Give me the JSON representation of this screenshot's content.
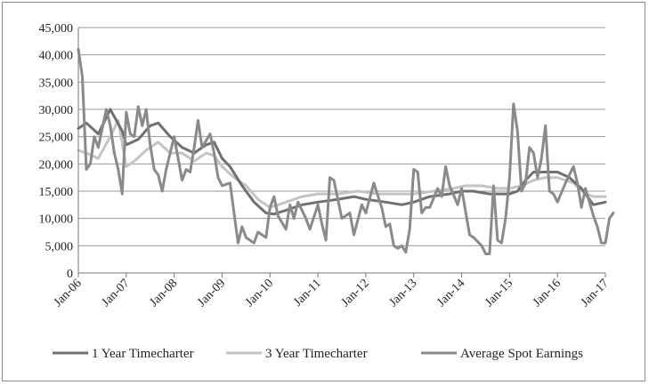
{
  "chart_data": {
    "type": "line",
    "title": "",
    "xlabel": "",
    "ylabel": "",
    "ylim": [
      0,
      45000
    ],
    "y_ticks": [
      0,
      5000,
      10000,
      15000,
      20000,
      25000,
      30000,
      35000,
      40000,
      45000
    ],
    "y_tick_labels": [
      "0",
      "5,000",
      "10,000",
      "15,000",
      "20,000",
      "25,000",
      "30,000",
      "35,000",
      "40,000",
      "45,000"
    ],
    "x_range": [
      "2006-01",
      "2017-01"
    ],
    "x_tick_labels": [
      "Jan-06",
      "Jan-07",
      "Jan-08",
      "Jan-09",
      "Jan-10",
      "Jan-11",
      "Jan-12",
      "Jan-13",
      "Jan-14",
      "Jan-15",
      "Jan-16",
      "Jan-17"
    ],
    "grid": "horizontal",
    "legend_position": "bottom",
    "series": [
      {
        "name": "1 Year Timecharter",
        "color": "#707070",
        "points": [
          [
            "2006-01",
            26500
          ],
          [
            "2006-03",
            27500
          ],
          [
            "2006-06",
            25500
          ],
          [
            "2006-09",
            30000
          ],
          [
            "2006-12",
            26000
          ],
          [
            "2007-01",
            23500
          ],
          [
            "2007-04",
            24500
          ],
          [
            "2007-07",
            27000
          ],
          [
            "2007-09",
            27500
          ],
          [
            "2007-12",
            25000
          ],
          [
            "2008-03",
            23000
          ],
          [
            "2008-06",
            22000
          ],
          [
            "2008-09",
            23500
          ],
          [
            "2008-11",
            24000
          ],
          [
            "2009-01",
            21000
          ],
          [
            "2009-03",
            19500
          ],
          [
            "2009-06",
            16000
          ],
          [
            "2009-09",
            13000
          ],
          [
            "2009-12",
            11000
          ],
          [
            "2010-02",
            10800
          ],
          [
            "2010-05",
            11500
          ],
          [
            "2010-09",
            12500
          ],
          [
            "2011-01",
            13000
          ],
          [
            "2011-06",
            13500
          ],
          [
            "2011-10",
            14000
          ],
          [
            "2012-01",
            13500
          ],
          [
            "2012-06",
            13000
          ],
          [
            "2012-10",
            12500
          ],
          [
            "2013-01",
            13000
          ],
          [
            "2013-05",
            14000
          ],
          [
            "2013-10",
            14500
          ],
          [
            "2014-01",
            15000
          ],
          [
            "2014-04",
            15000
          ],
          [
            "2014-08",
            14500
          ],
          [
            "2015-01",
            14500
          ],
          [
            "2015-03",
            15000
          ],
          [
            "2015-05",
            17000
          ],
          [
            "2015-07",
            18500
          ],
          [
            "2015-10",
            18500
          ],
          [
            "2016-01",
            18500
          ],
          [
            "2016-04",
            17500
          ],
          [
            "2016-07",
            15500
          ],
          [
            "2016-10",
            12500
          ],
          [
            "2017-01",
            13000
          ]
        ]
      },
      {
        "name": "3 Year Timecharter",
        "color": "#c4c4c4",
        "points": [
          [
            "2006-01",
            22500
          ],
          [
            "2006-03",
            22000
          ],
          [
            "2006-06",
            21000
          ],
          [
            "2006-09",
            25000
          ],
          [
            "2006-11",
            28000
          ],
          [
            "2007-01",
            19500
          ],
          [
            "2007-03",
            20500
          ],
          [
            "2007-06",
            22500
          ],
          [
            "2007-09",
            24000
          ],
          [
            "2007-12",
            22000
          ],
          [
            "2008-03",
            22000
          ],
          [
            "2008-06",
            20500
          ],
          [
            "2008-09",
            22000
          ],
          [
            "2008-11",
            21500
          ],
          [
            "2009-01",
            19500
          ],
          [
            "2009-04",
            17500
          ],
          [
            "2009-07",
            16000
          ],
          [
            "2009-10",
            13500
          ],
          [
            "2010-01",
            12000
          ],
          [
            "2010-05",
            13000
          ],
          [
            "2010-09",
            14000
          ],
          [
            "2011-01",
            14500
          ],
          [
            "2011-06",
            14500
          ],
          [
            "2011-11",
            15000
          ],
          [
            "2012-04",
            14500
          ],
          [
            "2012-09",
            14500
          ],
          [
            "2013-01",
            14500
          ],
          [
            "2013-06",
            15000
          ],
          [
            "2013-11",
            15500
          ],
          [
            "2014-02",
            16000
          ],
          [
            "2014-06",
            16000
          ],
          [
            "2014-10",
            15500
          ],
          [
            "2015-01",
            15500
          ],
          [
            "2015-04",
            16000
          ],
          [
            "2015-07",
            17000
          ],
          [
            "2015-10",
            17500
          ],
          [
            "2016-01",
            17500
          ],
          [
            "2016-05",
            16500
          ],
          [
            "2016-08",
            14500
          ],
          [
            "2016-10",
            14000
          ],
          [
            "2017-01",
            14000
          ]
        ]
      },
      {
        "name": "Average Spot Earnings",
        "color": "#8a8a8a",
        "points": [
          [
            "2006-01",
            41000
          ],
          [
            "2006-02",
            36000
          ],
          [
            "2006-03",
            19000
          ],
          [
            "2006-04",
            20000
          ],
          [
            "2006-05",
            25000
          ],
          [
            "2006-06",
            23000
          ],
          [
            "2006-08",
            30000
          ],
          [
            "2006-09",
            27000
          ],
          [
            "2006-10",
            22000
          ],
          [
            "2006-11",
            19000
          ],
          [
            "2006-12",
            14500
          ],
          [
            "2007-01",
            29500
          ],
          [
            "2007-02",
            25500
          ],
          [
            "2007-03",
            25000
          ],
          [
            "2007-04",
            30500
          ],
          [
            "2007-05",
            27000
          ],
          [
            "2007-06",
            30000
          ],
          [
            "2007-07",
            23500
          ],
          [
            "2007-08",
            19000
          ],
          [
            "2007-09",
            18000
          ],
          [
            "2007-10",
            15000
          ],
          [
            "2007-11",
            19000
          ],
          [
            "2008-01",
            25000
          ],
          [
            "2008-02",
            21000
          ],
          [
            "2008-03",
            17000
          ],
          [
            "2008-04",
            19000
          ],
          [
            "2008-05",
            18500
          ],
          [
            "2008-06",
            23000
          ],
          [
            "2008-07",
            28000
          ],
          [
            "2008-08",
            23000
          ],
          [
            "2008-10",
            25500
          ],
          [
            "2008-11",
            22000
          ],
          [
            "2008-12",
            17500
          ],
          [
            "2009-01",
            16000
          ],
          [
            "2009-03",
            16500
          ],
          [
            "2009-04",
            11000
          ],
          [
            "2009-05",
            5500
          ],
          [
            "2009-06",
            8500
          ],
          [
            "2009-07",
            6500
          ],
          [
            "2009-09",
            5500
          ],
          [
            "2009-10",
            7500
          ],
          [
            "2009-12",
            6500
          ],
          [
            "2010-01",
            12000
          ],
          [
            "2010-02",
            14000
          ],
          [
            "2010-03",
            10500
          ],
          [
            "2010-05",
            8000
          ],
          [
            "2010-06",
            12500
          ],
          [
            "2010-07",
            10000
          ],
          [
            "2010-08",
            13000
          ],
          [
            "2010-09",
            11500
          ],
          [
            "2010-10",
            10000
          ],
          [
            "2010-11",
            8000
          ],
          [
            "2011-01",
            12500
          ],
          [
            "2011-02",
            9000
          ],
          [
            "2011-03",
            6000
          ],
          [
            "2011-04",
            17500
          ],
          [
            "2011-05",
            17000
          ],
          [
            "2011-07",
            10000
          ],
          [
            "2011-09",
            11000
          ],
          [
            "2011-10",
            7000
          ],
          [
            "2011-12",
            12500
          ],
          [
            "2012-01",
            11000
          ],
          [
            "2012-03",
            16500
          ],
          [
            "2012-05",
            12000
          ],
          [
            "2012-06",
            8500
          ],
          [
            "2012-07",
            9000
          ],
          [
            "2012-08",
            5000
          ],
          [
            "2012-09",
            4500
          ],
          [
            "2012-10",
            5000
          ],
          [
            "2012-11",
            3800
          ],
          [
            "2012-12",
            8000
          ],
          [
            "2013-01",
            19000
          ],
          [
            "2013-02",
            18500
          ],
          [
            "2013-03",
            11000
          ],
          [
            "2013-04",
            12000
          ],
          [
            "2013-05",
            12000
          ],
          [
            "2013-07",
            15500
          ],
          [
            "2013-08",
            14000
          ],
          [
            "2013-09",
            19500
          ],
          [
            "2013-10",
            16000
          ],
          [
            "2013-12",
            12500
          ],
          [
            "2014-01",
            15500
          ],
          [
            "2014-03",
            7000
          ],
          [
            "2014-04",
            6500
          ],
          [
            "2014-06",
            5000
          ],
          [
            "2014-07",
            3500
          ],
          [
            "2014-08",
            3500
          ],
          [
            "2014-09",
            16000
          ],
          [
            "2014-10",
            6000
          ],
          [
            "2014-11",
            5500
          ],
          [
            "2014-12",
            10000
          ],
          [
            "2015-01",
            17500
          ],
          [
            "2015-02",
            31000
          ],
          [
            "2015-03",
            26000
          ],
          [
            "2015-04",
            15000
          ],
          [
            "2015-05",
            16500
          ],
          [
            "2015-06",
            23000
          ],
          [
            "2015-07",
            22000
          ],
          [
            "2015-08",
            17500
          ],
          [
            "2015-09",
            21000
          ],
          [
            "2015-10",
            27000
          ],
          [
            "2015-11",
            15000
          ],
          [
            "2015-12",
            14500
          ],
          [
            "2016-01",
            13000
          ],
          [
            "2016-03",
            16500
          ],
          [
            "2016-05",
            19500
          ],
          [
            "2016-06",
            16500
          ],
          [
            "2016-07",
            12000
          ],
          [
            "2016-08",
            15500
          ],
          [
            "2016-10",
            10500
          ],
          [
            "2016-11",
            8500
          ],
          [
            "2016-12",
            5500
          ],
          [
            "2017-01",
            5500
          ],
          [
            "2017-02",
            10000
          ],
          [
            "2017-03",
            11000
          ]
        ]
      }
    ]
  }
}
